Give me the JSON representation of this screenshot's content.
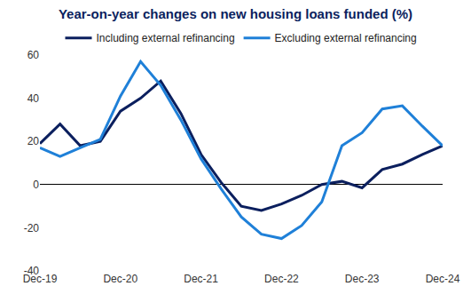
{
  "chart_data": {
    "type": "line",
    "title": "Year-on-year changes on new housing loans funded (%)",
    "categories": [
      "Dec-19",
      null,
      null,
      null,
      "Dec-20",
      null,
      null,
      null,
      "Dec-21",
      null,
      null,
      null,
      "Dec-22",
      null,
      null,
      null,
      "Dec-23",
      null,
      null,
      null,
      "Dec-24"
    ],
    "series": [
      {
        "name": "Including external refinancing",
        "color": "#0b1f5e",
        "values": [
          19,
          28,
          18,
          20,
          34,
          40,
          48,
          33,
          14,
          1,
          -10,
          -12,
          -9,
          -5,
          0,
          1.5,
          -1.5,
          7,
          9.5,
          14,
          18
        ]
      },
      {
        "name": "Excluding external refinancing",
        "color": "#1f80d8",
        "values": [
          17,
          13,
          17,
          21,
          41,
          57,
          46,
          30,
          12,
          -2,
          -15,
          -23,
          -25,
          -19,
          -8,
          18,
          24,
          35,
          36.5,
          27,
          18
        ]
      }
    ],
    "ylim": [
      -40,
      60
    ],
    "yticks": [
      -40,
      -20,
      0,
      20,
      40,
      60
    ],
    "grid": false,
    "legend": "top"
  }
}
